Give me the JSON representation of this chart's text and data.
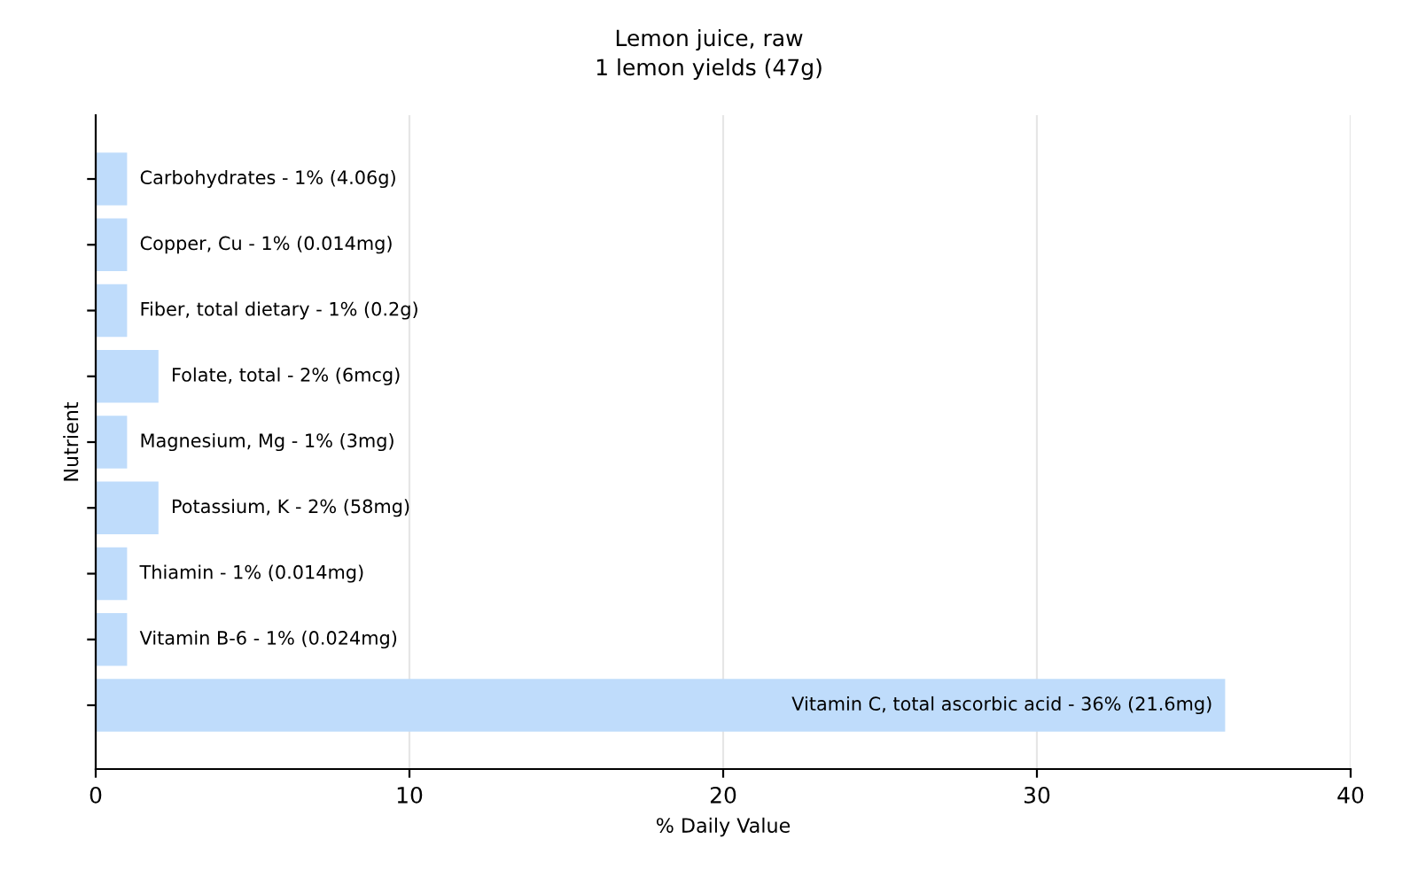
{
  "chart_data": {
    "type": "bar",
    "orientation": "horizontal",
    "title": "Lemon juice, raw",
    "subtitle": "1 lemon yields (47g)",
    "xlabel": "% Daily Value",
    "ylabel": "Nutrient",
    "categories": [
      "Carbohydrates -",
      "Copper, Cu -",
      "Fiber, total dietary -",
      "Folate, total -",
      "Magnesium, Mg -",
      "Potassium, K -",
      "Thiamin -",
      "Vitamin B-6 -",
      "Vitamin C, total ascorbic acid -"
    ],
    "values": [
      1,
      1,
      1,
      2,
      1,
      2,
      1,
      1,
      36
    ],
    "value_labels": [
      "1% (4.06g)",
      "1% (0.014mg)",
      "1% (0.2g)",
      "2% (6mcg)",
      "1% (3mg)",
      "2% (58mg)",
      "1% (0.014mg)",
      "1% (0.024mg)",
      "36% (21.6mg)"
    ],
    "color": "#bfdcfb",
    "xlim": [
      0,
      40
    ],
    "xticks": [
      0,
      10,
      20,
      30,
      40
    ],
    "grid": "x",
    "tick_labels": "x"
  }
}
